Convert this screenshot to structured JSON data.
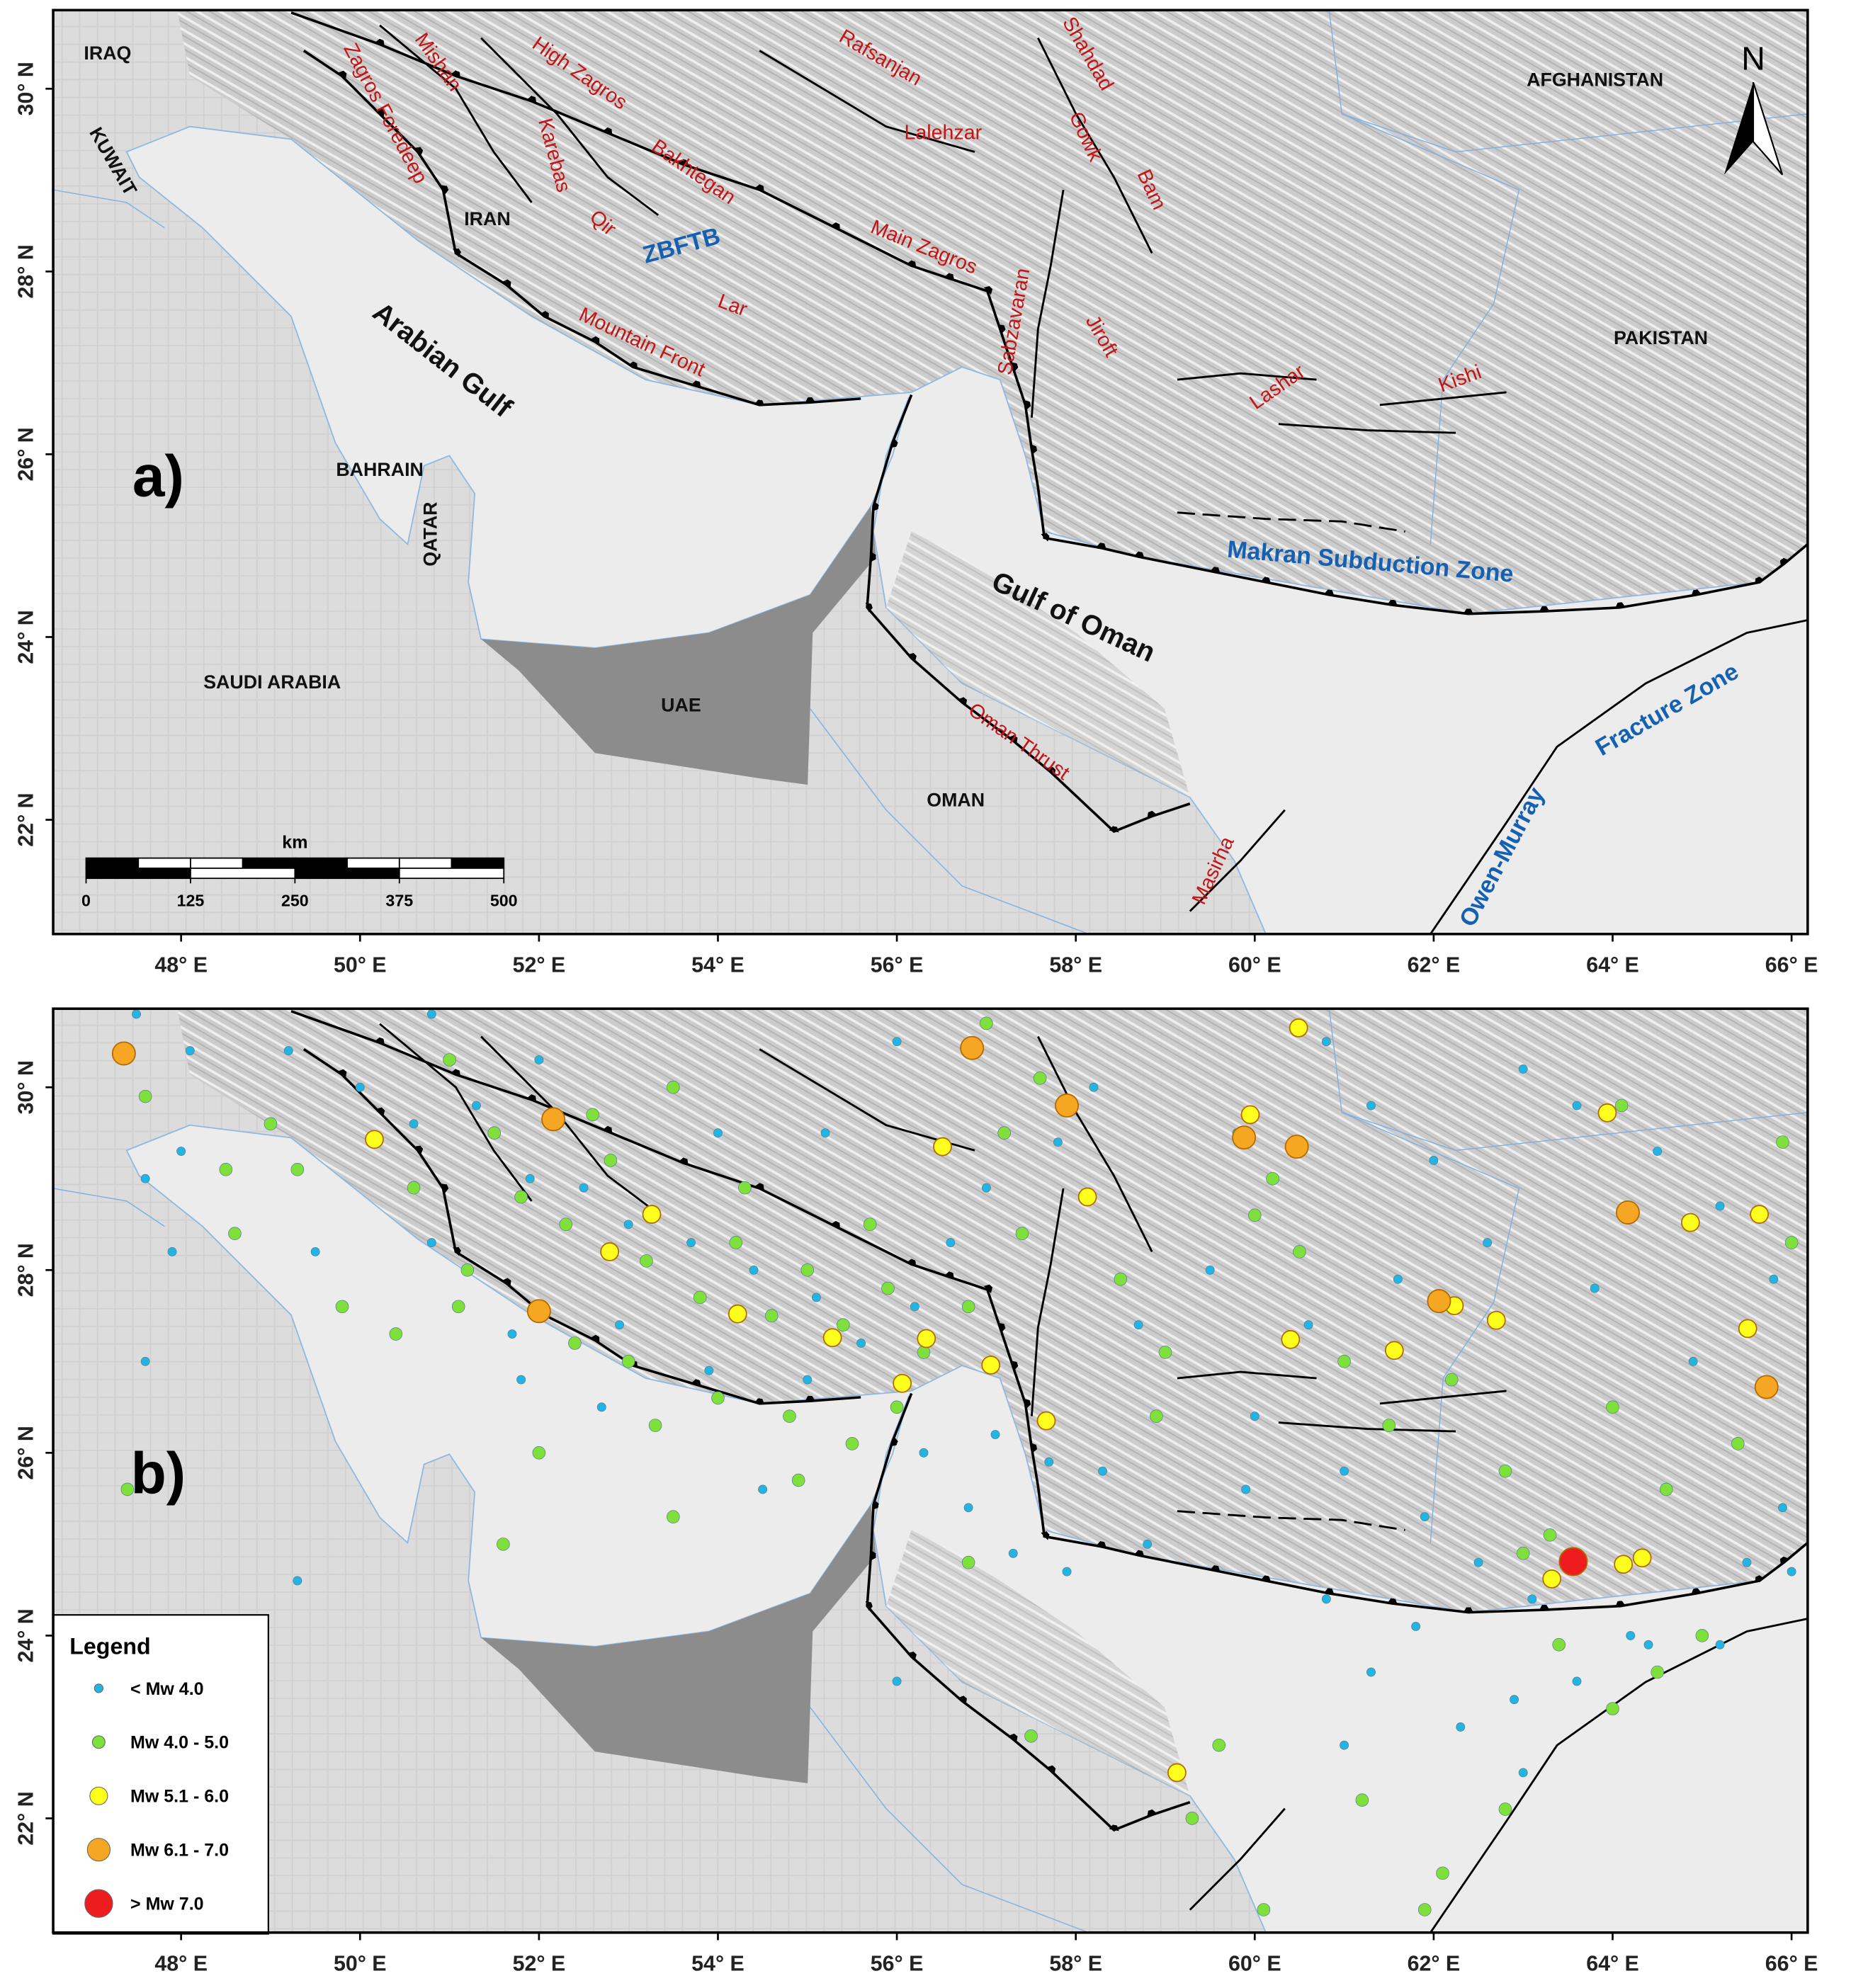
{
  "axes": {
    "xlim": [
      46.57,
      66.18
    ],
    "ylim": [
      20.75,
      30.86
    ],
    "xticks": [
      {
        "value": 48,
        "label": "48° E"
      },
      {
        "value": 50,
        "label": "50° E"
      },
      {
        "value": 52,
        "label": "52° E"
      },
      {
        "value": 54,
        "label": "54° E"
      },
      {
        "value": 56,
        "label": "56° E"
      },
      {
        "value": 58,
        "label": "58° E"
      },
      {
        "value": 60,
        "label": "60° E"
      },
      {
        "value": 62,
        "label": "62° E"
      },
      {
        "value": 64,
        "label": "64° E"
      },
      {
        "value": 66,
        "label": "66° E"
      }
    ],
    "yticks": [
      {
        "value": 22,
        "label": "22° N"
      },
      {
        "value": 24,
        "label": "24° N"
      },
      {
        "value": 26,
        "label": "26° N"
      },
      {
        "value": 28,
        "label": "28° N"
      },
      {
        "value": 30,
        "label": "30° N"
      }
    ]
  },
  "panel_a": {
    "tag": "a)",
    "countries": [
      "IRAQ",
      "KUWAIT",
      "IRAN",
      "BAHRAIN",
      "QATAR",
      "SAUDI ARABIA",
      "UAE",
      "OMAN",
      "AFGHANISTAN",
      "PAKISTAN"
    ],
    "water": [
      "Arabian Gulf",
      "Gulf of Oman"
    ],
    "faults": [
      "Mishan",
      "Zagros Foredeep",
      "High Zagros",
      "Bakhtegan",
      "Karebas",
      "Qir",
      "Lar",
      "Mountain Front",
      "Main Zagros",
      "Rafsanjan",
      "Lalehzar",
      "Shahdad",
      "Gowk",
      "Bam",
      "Sabzavaran",
      "Jiroft",
      "Lashar",
      "Kishi",
      "Oman Thrust",
      "Masirha"
    ],
    "zones": [
      "ZBFTB",
      "Makran Subduction Zone",
      "Owen-Murray",
      "Fracture Zone"
    ],
    "north": "N",
    "scale_bar": {
      "unit": "km",
      "ticks": [
        0,
        125,
        250,
        375,
        500
      ]
    }
  },
  "panel_b": {
    "tag": "b)",
    "legend": {
      "title": "Legend",
      "classes": [
        {
          "label": "< Mw 4.0",
          "color": "#22b5e3",
          "points": [
            [
              47.5,
              30.8
            ],
            [
              48.1,
              30.4
            ],
            [
              47.6,
              29.0
            ],
            [
              47.9,
              28.2
            ],
            [
              48.0,
              29.3
            ],
            [
              47.6,
              27.0
            ],
            [
              49.3,
              24.6
            ],
            [
              49.2,
              30.4
            ],
            [
              50.0,
              30.0
            ],
            [
              50.8,
              30.8
            ],
            [
              51.3,
              29.8
            ],
            [
              51.9,
              29.0
            ],
            [
              52.5,
              28.9
            ],
            [
              53.0,
              28.5
            ],
            [
              53.7,
              28.3
            ],
            [
              54.4,
              28.0
            ],
            [
              55.1,
              27.7
            ],
            [
              55.6,
              27.2
            ],
            [
              56.2,
              27.6
            ],
            [
              56.6,
              28.3
            ],
            [
              57.0,
              28.9
            ],
            [
              57.8,
              29.4
            ],
            [
              58.2,
              30.0
            ],
            [
              56.0,
              30.5
            ],
            [
              55.2,
              29.5
            ],
            [
              54.0,
              29.5
            ],
            [
              52.0,
              30.3
            ],
            [
              50.6,
              29.6
            ],
            [
              49.5,
              28.2
            ],
            [
              50.8,
              28.3
            ],
            [
              51.7,
              27.3
            ],
            [
              52.9,
              27.4
            ],
            [
              53.9,
              26.9
            ],
            [
              55.0,
              26.8
            ],
            [
              56.3,
              26.0
            ],
            [
              57.1,
              26.2
            ],
            [
              56.8,
              25.4
            ],
            [
              57.3,
              24.9
            ],
            [
              57.9,
              24.7
            ],
            [
              58.3,
              25.8
            ],
            [
              58.7,
              27.4
            ],
            [
              59.5,
              28.0
            ],
            [
              59.8,
              29.5
            ],
            [
              60.8,
              30.5
            ],
            [
              61.3,
              29.8
            ],
            [
              62.0,
              29.2
            ],
            [
              63.0,
              30.2
            ],
            [
              63.6,
              29.8
            ],
            [
              64.5,
              29.3
            ],
            [
              65.2,
              28.7
            ],
            [
              65.8,
              27.9
            ],
            [
              64.9,
              27.0
            ],
            [
              63.8,
              27.8
            ],
            [
              62.6,
              28.3
            ],
            [
              61.6,
              27.9
            ],
            [
              60.6,
              27.4
            ],
            [
              60.0,
              26.4
            ],
            [
              61.0,
              25.8
            ],
            [
              61.9,
              25.3
            ],
            [
              62.5,
              24.8
            ],
            [
              63.1,
              24.4
            ],
            [
              64.2,
              24.0
            ],
            [
              65.5,
              24.8
            ],
            [
              65.9,
              25.4
            ],
            [
              63.6,
              23.5
            ],
            [
              62.9,
              23.3
            ],
            [
              61.3,
              23.6
            ],
            [
              61.8,
              24.1
            ],
            [
              60.8,
              24.4
            ],
            [
              61.0,
              22.8
            ],
            [
              62.3,
              23.0
            ],
            [
              63.0,
              22.5
            ],
            [
              64.4,
              23.9
            ],
            [
              65.2,
              23.9
            ],
            [
              56.0,
              23.5
            ],
            [
              57.7,
              25.9
            ],
            [
              58.8,
              25.0
            ],
            [
              59.9,
              25.6
            ],
            [
              52.7,
              26.5
            ],
            [
              54.5,
              25.6
            ],
            [
              51.8,
              26.8
            ],
            [
              66.0,
              24.7
            ]
          ]
        },
        {
          "label": "Mw 4.0 - 5.0",
          "color": "#7ee03a",
          "points": [
            [
              47.4,
              25.6
            ],
            [
              47.6,
              29.9
            ],
            [
              48.5,
              29.1
            ],
            [
              49.0,
              29.6
            ],
            [
              48.6,
              28.4
            ],
            [
              49.3,
              29.1
            ],
            [
              50.6,
              28.9
            ],
            [
              51.0,
              30.3
            ],
            [
              51.5,
              29.5
            ],
            [
              51.8,
              28.8
            ],
            [
              52.3,
              28.5
            ],
            [
              52.8,
              29.2
            ],
            [
              53.2,
              28.1
            ],
            [
              53.8,
              27.7
            ],
            [
              54.2,
              28.3
            ],
            [
              54.6,
              27.5
            ],
            [
              55.0,
              28.0
            ],
            [
              55.4,
              27.4
            ],
            [
              55.9,
              27.8
            ],
            [
              56.3,
              27.1
            ],
            [
              56.8,
              27.6
            ],
            [
              57.4,
              28.4
            ],
            [
              57.2,
              29.5
            ],
            [
              57.6,
              30.1
            ],
            [
              53.0,
              27.0
            ],
            [
              52.4,
              27.2
            ],
            [
              54.0,
              26.6
            ],
            [
              54.8,
              26.4
            ],
            [
              55.5,
              26.1
            ],
            [
              53.3,
              26.3
            ],
            [
              51.1,
              27.6
            ],
            [
              50.4,
              27.3
            ],
            [
              52.0,
              26.0
            ],
            [
              53.5,
              25.3
            ],
            [
              51.6,
              25.0
            ],
            [
              49.8,
              27.6
            ],
            [
              56.8,
              24.8
            ],
            [
              57.5,
              22.9
            ],
            [
              59.3,
              22.0
            ],
            [
              59.6,
              22.8
            ],
            [
              58.5,
              27.9
            ],
            [
              59.0,
              27.1
            ],
            [
              60.2,
              29.0
            ],
            [
              60.5,
              28.2
            ],
            [
              61.0,
              27.0
            ],
            [
              61.5,
              26.3
            ],
            [
              62.2,
              26.8
            ],
            [
              62.8,
              25.8
            ],
            [
              63.3,
              25.1
            ],
            [
              63.0,
              24.9
            ],
            [
              64.0,
              26.5
            ],
            [
              64.6,
              25.6
            ],
            [
              65.0,
              24.0
            ],
            [
              64.5,
              23.6
            ],
            [
              64.0,
              23.2
            ],
            [
              63.4,
              23.9
            ],
            [
              62.1,
              21.4
            ],
            [
              61.9,
              21.0
            ],
            [
              60.1,
              21.0
            ],
            [
              61.2,
              22.2
            ],
            [
              62.8,
              22.1
            ],
            [
              65.4,
              26.1
            ],
            [
              65.9,
              29.4
            ],
            [
              64.1,
              29.8
            ],
            [
              60.0,
              28.6
            ],
            [
              58.9,
              26.4
            ],
            [
              57.0,
              30.7
            ],
            [
              53.5,
              30.0
            ],
            [
              52.6,
              29.7
            ],
            [
              51.2,
              28.0
            ],
            [
              54.3,
              28.9
            ],
            [
              55.7,
              28.5
            ],
            [
              56.0,
              26.5
            ],
            [
              54.9,
              25.7
            ],
            [
              66.0,
              28.3
            ]
          ]
        },
        {
          "label": "Mw 5.1 - 6.0",
          "color": "#ffff1e",
          "points": [
            [
              53.26,
              28.61
            ],
            [
              59.95,
              29.7
            ],
            [
              60.49,
              30.65
            ],
            [
              62.7,
              27.45
            ],
            [
              61.56,
              27.12
            ],
            [
              60.4,
              27.24
            ],
            [
              64.12,
              24.78
            ],
            [
              64.33,
              24.85
            ],
            [
              64.87,
              28.52
            ],
            [
              65.64,
              28.61
            ],
            [
              65.51,
              27.36
            ],
            [
              62.23,
              27.61
            ],
            [
              57.05,
              26.96
            ],
            [
              57.67,
              26.35
            ],
            [
              55.28,
              27.26
            ],
            [
              56.06,
              26.76
            ],
            [
              52.79,
              28.2
            ],
            [
              50.16,
              29.43
            ],
            [
              59.13,
              22.5
            ],
            [
              63.94,
              29.72
            ],
            [
              56.51,
              29.35
            ],
            [
              58.13,
              28.8
            ],
            [
              54.22,
              27.52
            ],
            [
              56.33,
              27.25
            ],
            [
              63.32,
              24.62
            ]
          ]
        },
        {
          "label": "Mw 6.1 - 7.0",
          "color": "#f5a623",
          "points": [
            [
              47.36,
              30.37
            ],
            [
              52.16,
              29.65
            ],
            [
              57.9,
              29.8
            ],
            [
              64.17,
              28.63
            ],
            [
              65.72,
              26.72
            ],
            [
              62.06,
              27.66
            ],
            [
              59.88,
              29.45
            ],
            [
              60.47,
              29.35
            ],
            [
              52.0,
              27.55
            ],
            [
              56.84,
              30.43
            ]
          ]
        },
        {
          "label": "> Mw 7.0",
          "color": "#ee1c1c",
          "points": [
            [
              63.56,
              24.81
            ]
          ]
        }
      ]
    }
  }
}
